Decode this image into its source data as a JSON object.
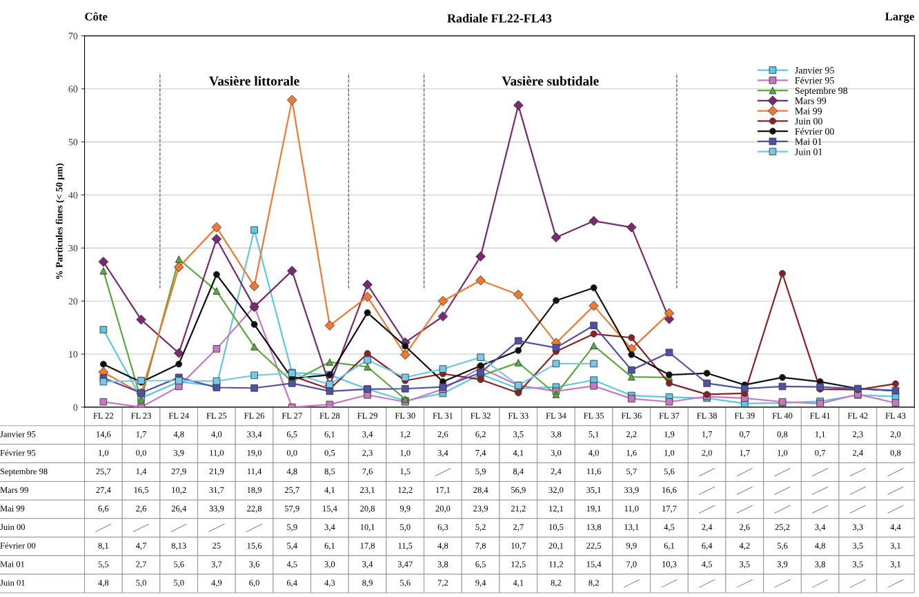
{
  "chart_data": {
    "type": "line",
    "title": "Radiale FL22-FL43",
    "ylabel": "% Particules fines (< 50 µm)",
    "categories": [
      "FL 22",
      "FL 23",
      "FL 24",
      "FL 25",
      "FL 26",
      "FL 27",
      "FL 28",
      "FL 29",
      "FL 30",
      "FL 31",
      "FL 32",
      "FL 33",
      "FL 34",
      "FL 35",
      "FL 36",
      "FL 37",
      "FL 38",
      "FL 39",
      "FL 40",
      "FL 41",
      "FL 42",
      "FL 43"
    ],
    "ylim": [
      0,
      70
    ],
    "yticks": [
      0,
      10,
      20,
      30,
      40,
      50,
      60,
      70
    ],
    "grid": "y",
    "legend": "top right",
    "line_style": "solid",
    "annotations": [
      "Côte",
      "Large",
      "Vasière littorale",
      "Vasière subtidale"
    ],
    "series": [
      {
        "name": "Janvier 95",
        "color": "#5ec8e0",
        "marker": "square",
        "values": [
          14.6,
          1.7,
          4.8,
          4.0,
          33.4,
          6.5,
          6.1,
          3.4,
          1.2,
          2.6,
          6.2,
          3.5,
          3.8,
          5.1,
          2.2,
          1.9,
          1.7,
          0.7,
          0.8,
          1.1,
          2.3,
          2.0
        ],
        "value_labels": [
          "14,6",
          "1,7",
          "4,8",
          "4,0",
          "33,4",
          "6,5",
          "6,1",
          "3,4",
          "1,2",
          "2,6",
          "6,2",
          "3,5",
          "3,8",
          "5,1",
          "2,2",
          "1,9",
          "1,7",
          "0,7",
          "0,8",
          "1,1",
          "2,3",
          "2,0"
        ]
      },
      {
        "name": "Février 95",
        "color": "#c878c0",
        "marker": "square",
        "values": [
          1.0,
          0.0,
          3.9,
          11.0,
          19.0,
          0.0,
          0.5,
          2.3,
          1.0,
          3.4,
          7.4,
          4.1,
          3.0,
          4.0,
          1.6,
          1.0,
          2.0,
          1.7,
          1.0,
          0.7,
          2.4,
          0.8
        ],
        "value_labels": [
          "1,0",
          "0,0",
          "3,9",
          "11,0",
          "19,0",
          "0,0",
          "0,5",
          "2,3",
          "1,0",
          "3,4",
          "7,4",
          "4,1",
          "3,0",
          "4,0",
          "1,6",
          "1,0",
          "2,0",
          "1,7",
          "1,0",
          "0,7",
          "2,4",
          "0,8"
        ]
      },
      {
        "name": "Septembre 98",
        "color": "#5aaa3c",
        "marker": "triangle",
        "values": [
          25.7,
          1.4,
          27.9,
          21.9,
          11.4,
          4.8,
          8.5,
          7.6,
          1.5,
          null,
          5.9,
          8.4,
          2.4,
          11.6,
          5.7,
          5.6,
          null,
          null,
          null,
          null,
          null,
          null
        ],
        "value_labels": [
          "25,7",
          "1,4",
          "27,9",
          "21,9",
          "11,4",
          "4,8",
          "8,5",
          "7,6",
          "1,5",
          null,
          "5,9",
          "8,4",
          "2,4",
          "11,6",
          "5,7",
          "5,6",
          null,
          null,
          null,
          null,
          null,
          null
        ]
      },
      {
        "name": "Mars 99",
        "color": "#7a2a6e",
        "marker": "diamond",
        "values": [
          27.4,
          16.5,
          10.2,
          31.7,
          18.9,
          25.7,
          4.1,
          23.1,
          12.2,
          17.1,
          28.4,
          56.9,
          32.0,
          35.1,
          33.9,
          16.6,
          null,
          null,
          null,
          null,
          null,
          null
        ],
        "value_labels": [
          "27,4",
          "16,5",
          "10,2",
          "31,7",
          "18,9",
          "25,7",
          "4,1",
          "23,1",
          "12,2",
          "17,1",
          "28,4",
          "56,9",
          "32,0",
          "35,1",
          "33,9",
          "16,6",
          null,
          null,
          null,
          null,
          null,
          null
        ]
      },
      {
        "name": "Mai 99",
        "color": "#f07830",
        "marker": "diamond",
        "values": [
          6.6,
          2.6,
          26.4,
          33.9,
          22.8,
          57.9,
          15.4,
          20.8,
          9.9,
          20.0,
          23.9,
          21.2,
          12.1,
          19.1,
          11.0,
          17.7,
          null,
          null,
          null,
          null,
          null,
          null
        ],
        "value_labels": [
          "6,6",
          "2,6",
          "26,4",
          "33,9",
          "22,8",
          "57,9",
          "15,4",
          "20,8",
          "9,9",
          "20,0",
          "23,9",
          "21,2",
          "12,1",
          "19,1",
          "11,0",
          "17,7",
          null,
          null,
          null,
          null,
          null,
          null
        ]
      },
      {
        "name": "Juin 00",
        "color": "#8b2222",
        "marker": "circle",
        "values": [
          null,
          null,
          null,
          null,
          null,
          5.9,
          3.4,
          10.1,
          5.0,
          6.3,
          5.2,
          2.7,
          10.5,
          13.8,
          13.1,
          4.5,
          2.4,
          2.6,
          25.2,
          3.4,
          3.3,
          4.4
        ],
        "value_labels": [
          null,
          null,
          null,
          null,
          null,
          "5,9",
          "3,4",
          "10,1",
          "5,0",
          "6,3",
          "5,2",
          "2,7",
          "10,5",
          "13,8",
          "13,1",
          "4,5",
          "2,4",
          "2,6",
          "25,2",
          "3,4",
          "3,3",
          "4,4"
        ]
      },
      {
        "name": "Février 00",
        "color": "#111111",
        "marker": "circle",
        "values": [
          8.1,
          4.7,
          8.13,
          25,
          15.6,
          5.4,
          6.1,
          17.8,
          11.5,
          4.8,
          7.8,
          10.7,
          20.1,
          22.5,
          9.9,
          6.1,
          6.4,
          4.2,
          5.6,
          4.8,
          3.5,
          3.1
        ],
        "value_labels": [
          "8,1",
          "4,7",
          "8,13",
          "25",
          "15,6",
          "5,4",
          "6,1",
          "17,8",
          "11,5",
          "4,8",
          "7,8",
          "10,7",
          "20,1",
          "22,5",
          "9,9",
          "6,1",
          "6,4",
          "4,2",
          "5,6",
          "4,8",
          "3,5",
          "3,1"
        ]
      },
      {
        "name": "Mai 01",
        "color": "#5050a8",
        "marker": "square",
        "values": [
          5.5,
          2.7,
          5.6,
          3.7,
          3.6,
          4.5,
          3.0,
          3.4,
          3.47,
          3.8,
          6.5,
          12.5,
          11.2,
          15.4,
          7.0,
          10.3,
          4.5,
          3.5,
          3.9,
          3.8,
          3.5,
          3.1
        ],
        "value_labels": [
          "5,5",
          "2,7",
          "5,6",
          "3,7",
          "3,6",
          "4,5",
          "3,0",
          "3,4",
          "3,47",
          "3,8",
          "6,5",
          "12,5",
          "11,2",
          "15,4",
          "7,0",
          "10,3",
          "4,5",
          "3,5",
          "3,9",
          "3,8",
          "3,5",
          "3,1"
        ]
      },
      {
        "name": "Juin 01",
        "color": "#78c8e8",
        "marker": "square",
        "values": [
          4.8,
          5.0,
          5.0,
          4.9,
          6.0,
          6.4,
          4.3,
          8.9,
          5.6,
          7.2,
          9.4,
          4.1,
          8.2,
          8.2,
          null,
          null,
          null,
          null,
          null,
          null,
          null,
          null
        ],
        "value_labels": [
          "4,8",
          "5,0",
          "5,0",
          "4,9",
          "6,0",
          "6,4",
          "4,3",
          "8,9",
          "5,6",
          "7,2",
          "9,4",
          "4,1",
          "8,2",
          "8,2",
          null,
          null,
          null,
          null,
          null,
          null,
          null,
          null
        ]
      }
    ]
  }
}
